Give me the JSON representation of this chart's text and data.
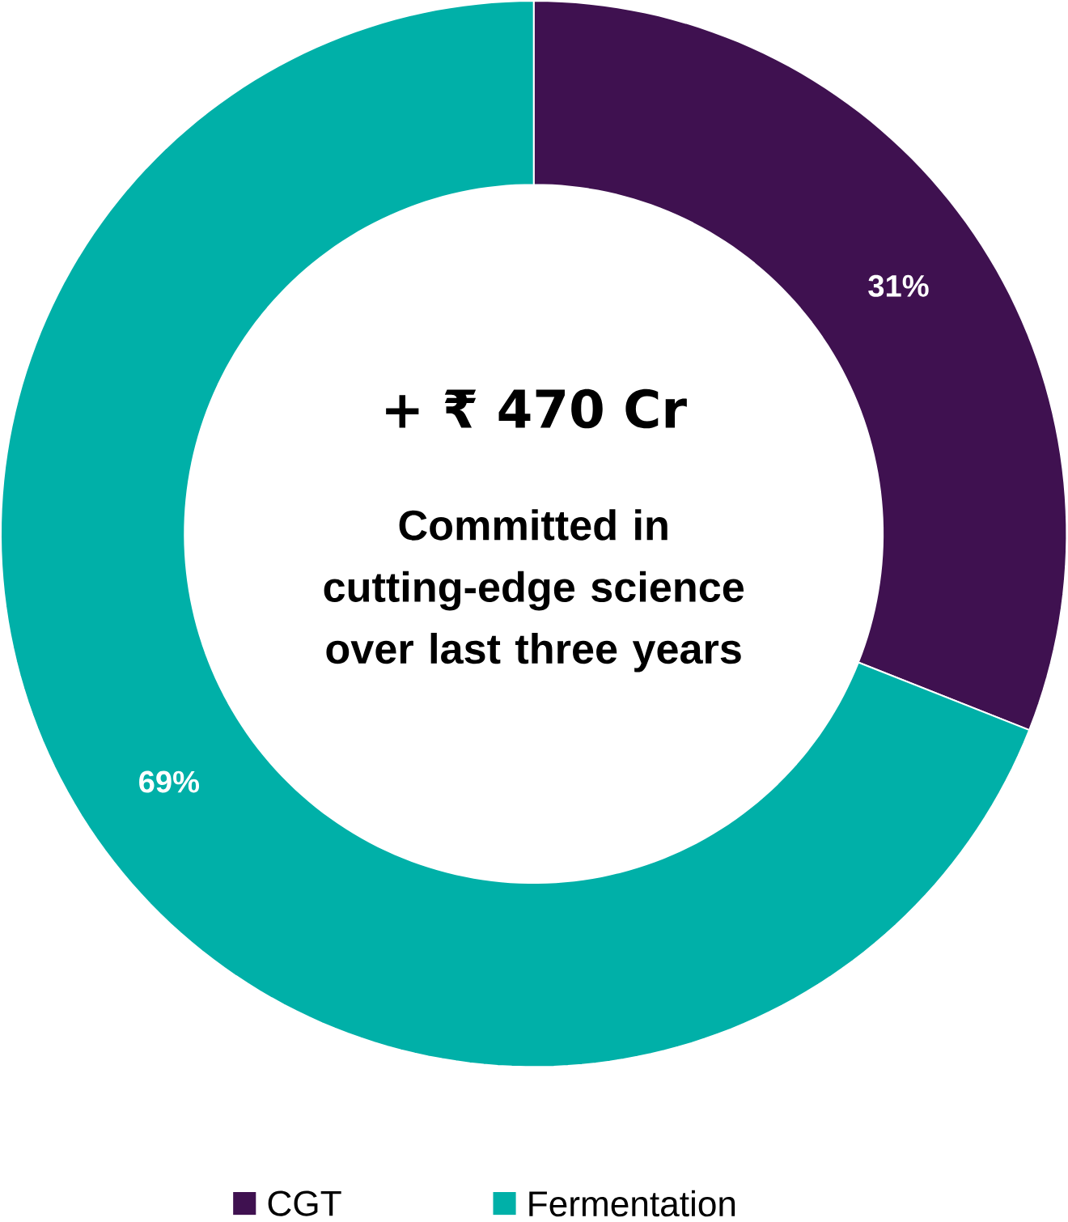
{
  "chart_data": {
    "type": "donut",
    "title": "+ ₹ 470 Cr",
    "subtitle": "Committed in cutting-edge science over last three years",
    "categories": [
      "CGT",
      "Fermentation"
    ],
    "values": [
      31,
      69
    ],
    "colors": [
      "#3f1150",
      "#00b0a8"
    ],
    "value_labels": [
      "31%",
      "69%"
    ],
    "legend": "bottom"
  }
}
